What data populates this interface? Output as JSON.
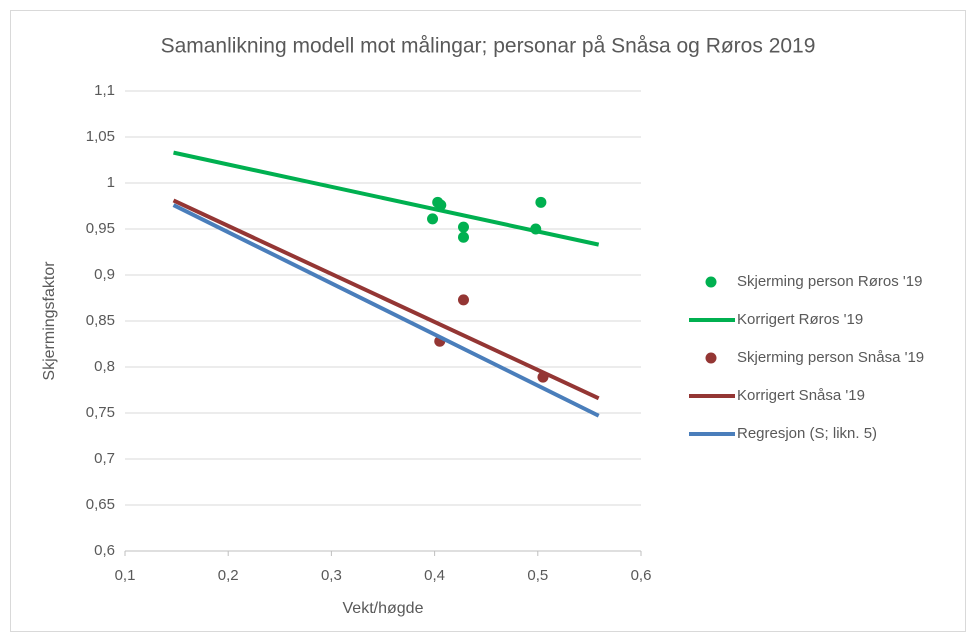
{
  "chart_data": {
    "type": "scatter",
    "title": "Samanlikning modell mot målingar; personar på Snåsa og Røros 2019",
    "x_label": "Vekt/høgde",
    "y_label": "Skjermingsfaktor",
    "xlim": [
      0.1,
      0.6
    ],
    "ylim": [
      0.6,
      1.1
    ],
    "xticks": [
      {
        "value": 0.1,
        "label": "0,1"
      },
      {
        "value": 0.2,
        "label": "0,2"
      },
      {
        "value": 0.3,
        "label": "0,3"
      },
      {
        "value": 0.4,
        "label": "0,4"
      },
      {
        "value": 0.5,
        "label": "0,5"
      },
      {
        "value": 0.6,
        "label": "0,6"
      }
    ],
    "yticks": [
      {
        "value": 0.6,
        "label": "0,6"
      },
      {
        "value": 0.65,
        "label": "0,65"
      },
      {
        "value": 0.7,
        "label": "0,7"
      },
      {
        "value": 0.75,
        "label": "0,75"
      },
      {
        "value": 0.8,
        "label": "0,8"
      },
      {
        "value": 0.85,
        "label": "0,85"
      },
      {
        "value": 0.9,
        "label": "0,9"
      },
      {
        "value": 0.95,
        "label": "0,95"
      },
      1,
      {
        "value": 1.05,
        "label": "1,05"
      },
      {
        "value": 1.1,
        "label": "1,1"
      }
    ],
    "grid": true,
    "legend": "right",
    "series": [
      {
        "name": "Skjerming person Røros '19",
        "color": "#00b050",
        "mode": "markers",
        "x": [
          0.398,
          0.403,
          0.406,
          0.428,
          0.428,
          0.498,
          0.503
        ],
        "values": [
          0.961,
          0.979,
          0.976,
          0.952,
          0.941,
          0.95,
          0.979
        ]
      },
      {
        "name": "Korrigert Røros '19",
        "color": "#00b050",
        "mode": "line",
        "x": [
          0.147,
          0.559
        ],
        "values": [
          1.033,
          0.933
        ]
      },
      {
        "name": "Skjerming person Snåsa '19",
        "color": "#943634",
        "mode": "markers",
        "x": [
          0.428,
          0.405,
          0.505
        ],
        "values": [
          0.873,
          0.828,
          0.789
        ]
      },
      {
        "name": "Korrigert Snåsa '19",
        "color": "#943634",
        "mode": "line",
        "x": [
          0.147,
          0.559
        ],
        "values": [
          0.981,
          0.766
        ]
      },
      {
        "name": "Regresjon (S; likn. 5)",
        "color": "#4a7ebb",
        "mode": "line",
        "x": [
          0.147,
          0.559
        ],
        "values": [
          0.976,
          0.747
        ]
      }
    ]
  }
}
